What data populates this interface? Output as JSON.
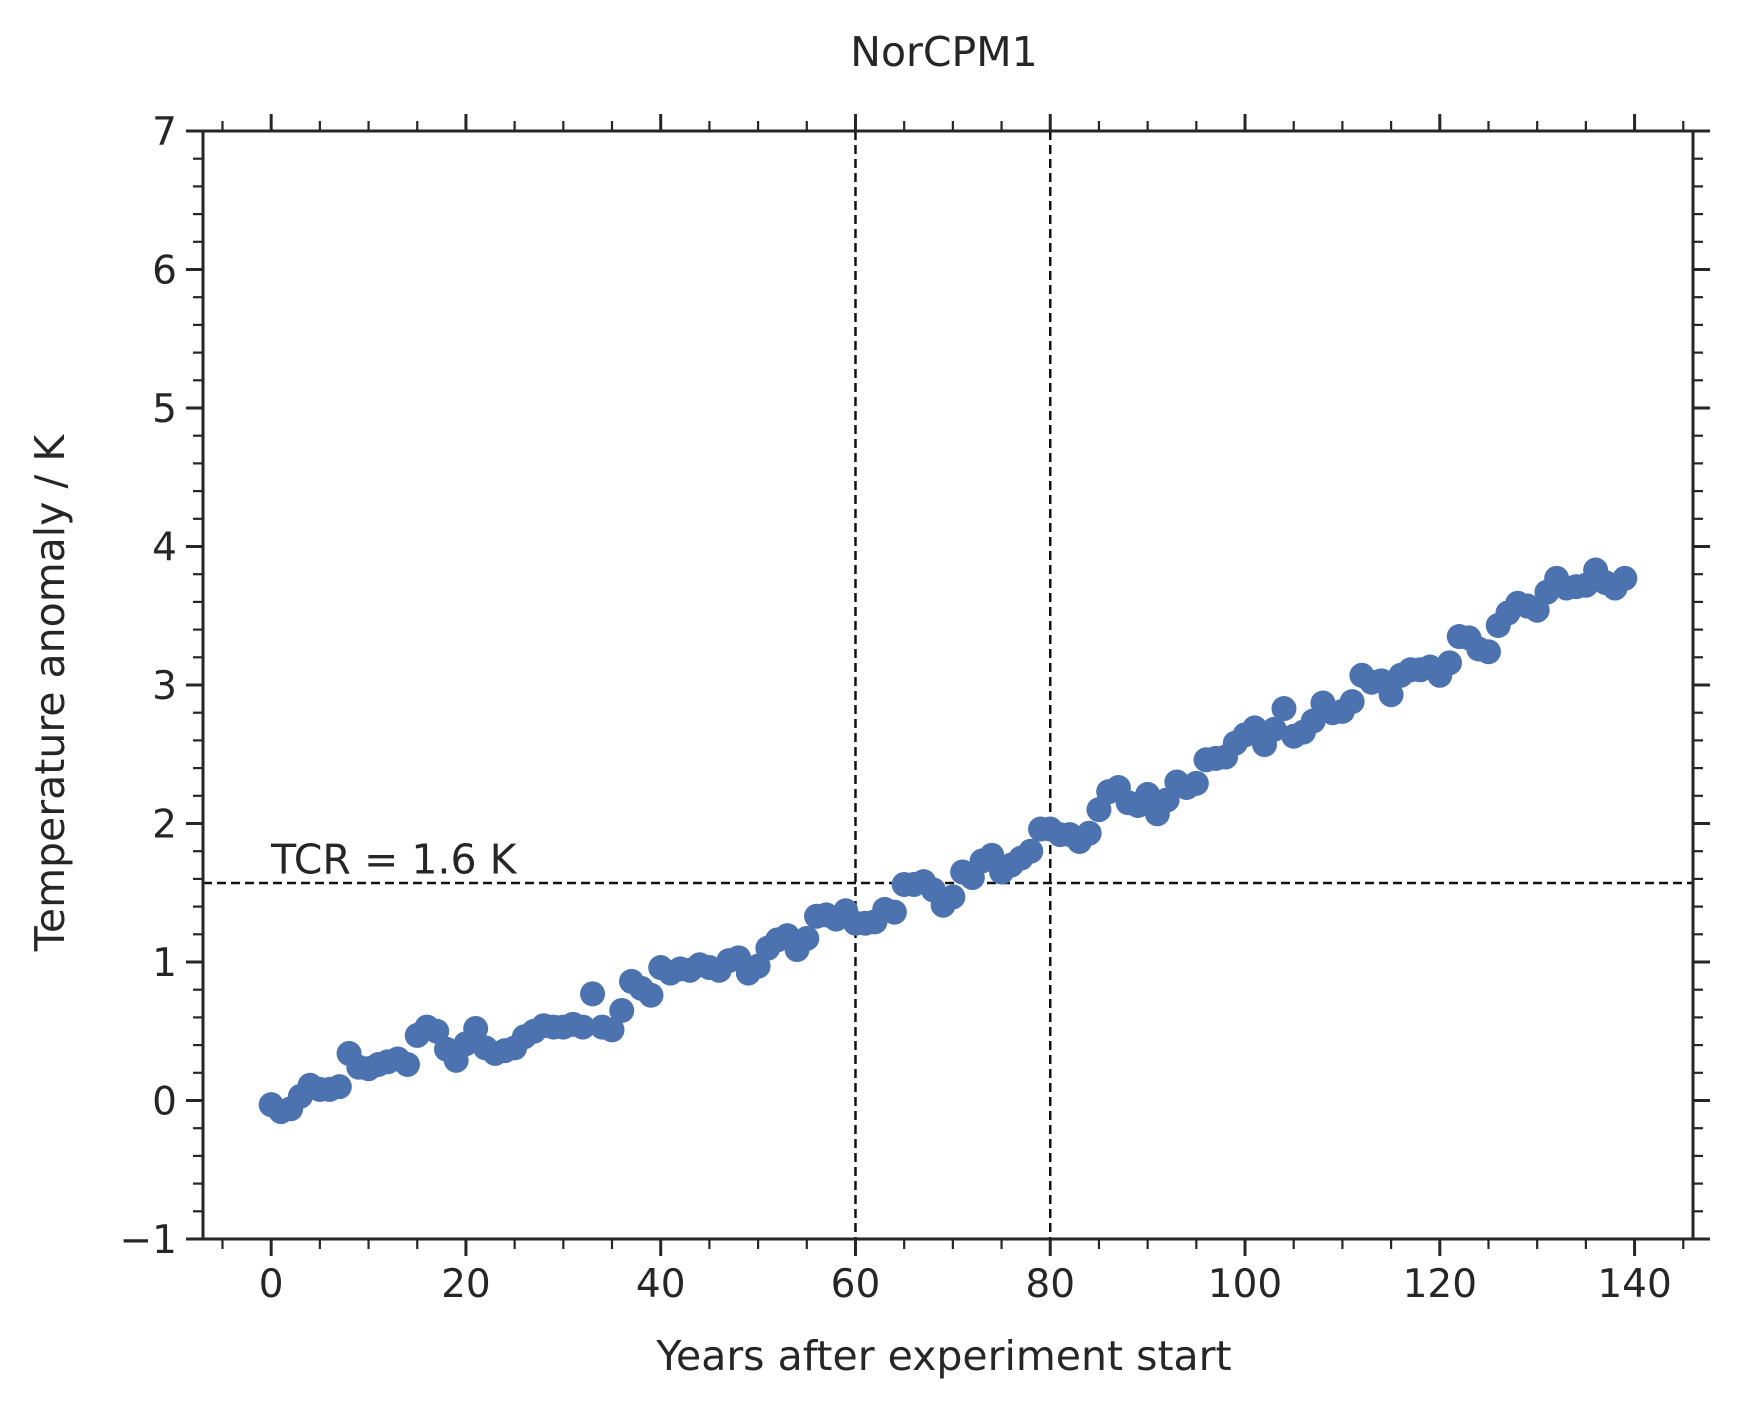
{
  "chart_data": {
    "type": "scatter",
    "title": "NorCPM1",
    "xlabel": "Years after experiment start",
    "ylabel": "Temperature anomaly / K",
    "xlim": [
      -7,
      146
    ],
    "ylim": [
      -1,
      7
    ],
    "x_ticks": [
      0,
      20,
      40,
      60,
      80,
      100,
      120,
      140
    ],
    "y_ticks": [
      -1,
      0,
      1,
      2,
      3,
      4,
      5,
      6,
      7
    ],
    "x_tick_labels": [
      "0",
      "20",
      "40",
      "60",
      "80",
      "100",
      "120",
      "140"
    ],
    "y_tick_labels": [
      "−1",
      "0",
      "1",
      "2",
      "3",
      "4",
      "5",
      "6",
      "7"
    ],
    "grid": false,
    "marker_color": "#4c72b0",
    "reference_lines": {
      "vertical_x": [
        60,
        80
      ],
      "horizontal_y": 1.57,
      "style": "dashed",
      "color": "#111111"
    },
    "annotation": {
      "text": "TCR = 1.6 K",
      "x": 0,
      "y": 1.64
    },
    "x": [
      0,
      1,
      2,
      3,
      4,
      5,
      6,
      7,
      8,
      9,
      10,
      11,
      12,
      13,
      14,
      15,
      16,
      17,
      18,
      19,
      20,
      21,
      22,
      23,
      24,
      25,
      26,
      27,
      28,
      29,
      30,
      31,
      32,
      33,
      34,
      35,
      36,
      37,
      38,
      39,
      40,
      41,
      42,
      43,
      44,
      45,
      46,
      47,
      48,
      49,
      50,
      51,
      52,
      53,
      54,
      55,
      56,
      57,
      58,
      59,
      60,
      61,
      62,
      63,
      64,
      65,
      66,
      67,
      68,
      69,
      70,
      71,
      72,
      73,
      74,
      75,
      76,
      77,
      78,
      79,
      80,
      81,
      82,
      83,
      84,
      85,
      86,
      87,
      88,
      89,
      90,
      91,
      92,
      93,
      94,
      95,
      96,
      97,
      98,
      99,
      100,
      101,
      102,
      103,
      104,
      105,
      106,
      107,
      108,
      109,
      110,
      111,
      112,
      113,
      114,
      115,
      116,
      117,
      118,
      119,
      120,
      121,
      122,
      123,
      124,
      125,
      126,
      127,
      128,
      129,
      130,
      131,
      132,
      133,
      134,
      135,
      136,
      137,
      138,
      139
    ],
    "y": [
      -0.03,
      -0.08,
      -0.06,
      0.03,
      0.11,
      0.08,
      0.08,
      0.1,
      0.34,
      0.24,
      0.23,
      0.26,
      0.28,
      0.3,
      0.26,
      0.47,
      0.53,
      0.5,
      0.37,
      0.29,
      0.41,
      0.52,
      0.38,
      0.34,
      0.36,
      0.38,
      0.46,
      0.5,
      0.54,
      0.53,
      0.53,
      0.55,
      0.53,
      0.77,
      0.53,
      0.51,
      0.65,
      0.86,
      0.81,
      0.76,
      0.96,
      0.92,
      0.95,
      0.94,
      0.98,
      0.96,
      0.94,
      1.01,
      1.03,
      0.92,
      0.97,
      1.1,
      1.16,
      1.19,
      1.09,
      1.17,
      1.33,
      1.34,
      1.31,
      1.37,
      1.28,
      1.28,
      1.29,
      1.38,
      1.36,
      1.56,
      1.56,
      1.58,
      1.52,
      1.41,
      1.47,
      1.65,
      1.61,
      1.73,
      1.77,
      1.65,
      1.7,
      1.75,
      1.8,
      1.96,
      1.96,
      1.92,
      1.92,
      1.87,
      1.93,
      2.1,
      2.23,
      2.26,
      2.15,
      2.13,
      2.21,
      2.07,
      2.17,
      2.3,
      2.26,
      2.29,
      2.46,
      2.47,
      2.48,
      2.58,
      2.64,
      2.69,
      2.57,
      2.68,
      2.83,
      2.63,
      2.66,
      2.74,
      2.87,
      2.8,
      2.81,
      2.88,
      3.07,
      3.02,
      3.03,
      2.93,
      3.07,
      3.11,
      3.11,
      3.13,
      3.07,
      3.16,
      3.35,
      3.34,
      3.26,
      3.24,
      3.43,
      3.52,
      3.59,
      3.57,
      3.54,
      3.67,
      3.77,
      3.7,
      3.71,
      3.72,
      3.83,
      3.74,
      3.7,
      3.77
    ]
  }
}
